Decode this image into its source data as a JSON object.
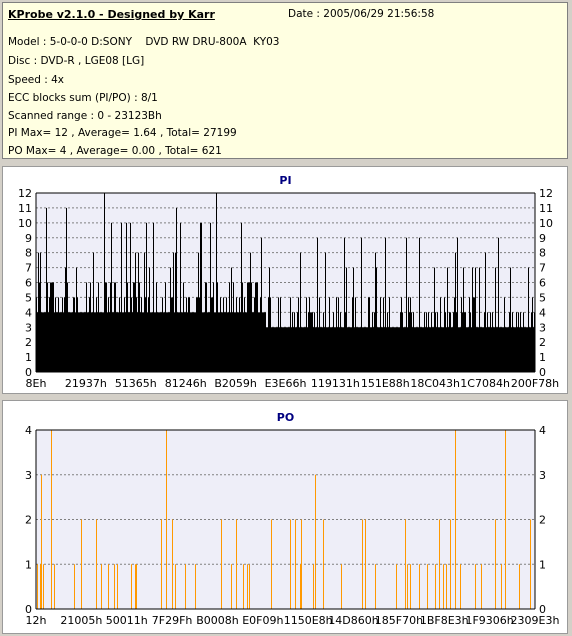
{
  "info": {
    "title": "KProbe v2.1.0 - Designed by Karr",
    "date": "Date : 2005/06/29 21:56:58",
    "lines": [
      "Model : 5-0-0-0 D:SONY    DVD RW DRU-800A  KY03",
      "Disc : DVD-R , LGE08 [LG]",
      "Speed : 4x",
      "ECC blocks sum (PI/PO) : 8/1",
      "Scanned range : 0 - 23123Bh",
      "PI Max= 12 , Average= 1.64 , Total= 27199",
      "PO Max= 4 , Average= 0.00 , Total= 621"
    ]
  },
  "colors": {
    "pi_bar": "#000000",
    "po_bar": "#ff9900",
    "plot_bg": "#eeeef8",
    "title": "#000080",
    "panel_bg": "#ffffe1"
  },
  "chart_data": [
    {
      "type": "bar",
      "title": "PI",
      "ylim": [
        0,
        12
      ],
      "yticks": [
        0,
        1,
        2,
        3,
        4,
        5,
        6,
        7,
        8,
        9,
        10,
        11,
        12
      ],
      "x_tick_labels": [
        "8Eh",
        "21937h",
        "51365h",
        "81246h",
        "B2059h",
        "E3E66h",
        "119131h",
        "151E88h",
        "18C043h",
        "1C7084h",
        "200F78h"
      ],
      "grid": true,
      "baseline_profile": [
        {
          "from": 0.0,
          "to": 0.46,
          "base": 4
        },
        {
          "from": 0.46,
          "to": 1.0,
          "base": 3
        }
      ],
      "max": 12,
      "average": 1.64,
      "spikes": [
        {
          "pos": 0.02,
          "value": 11
        },
        {
          "pos": 0.06,
          "value": 11
        },
        {
          "pos": 0.15,
          "value": 10
        },
        {
          "pos": 0.22,
          "value": 10
        },
        {
          "pos": 0.28,
          "value": 11
        },
        {
          "pos": 0.33,
          "value": 10
        },
        {
          "pos": 0.36,
          "value": 12
        },
        {
          "pos": 0.41,
          "value": 10
        },
        {
          "pos": 0.45,
          "value": 9
        },
        {
          "pos": 0.53,
          "value": 8
        },
        {
          "pos": 0.58,
          "value": 8
        },
        {
          "pos": 0.68,
          "value": 8
        },
        {
          "pos": 0.84,
          "value": 8
        },
        {
          "pos": 0.9,
          "value": 8
        },
        {
          "pos": 0.95,
          "value": 7
        }
      ]
    },
    {
      "type": "bar",
      "title": "PO",
      "ylim": [
        0,
        4
      ],
      "yticks": [
        0,
        1,
        2,
        3,
        4
      ],
      "x_tick_labels": [
        "12h",
        "21005h",
        "50011h",
        "7F29Fh",
        "B0008h",
        "E0F09h",
        "1150E8h",
        "14D860h",
        "185F70h",
        "1BF8E3h",
        "1F9306h",
        "2309E3h"
      ],
      "grid": true,
      "max": 4,
      "average": 0.0,
      "spikes": [
        {
          "pos": 0.01,
          "value": 3
        },
        {
          "pos": 0.03,
          "value": 4
        },
        {
          "pos": 0.09,
          "value": 2
        },
        {
          "pos": 0.12,
          "value": 2
        },
        {
          "pos": 0.13,
          "value": 1
        },
        {
          "pos": 0.2,
          "value": 1
        },
        {
          "pos": 0.25,
          "value": 2
        },
        {
          "pos": 0.26,
          "value": 4
        },
        {
          "pos": 0.37,
          "value": 2
        },
        {
          "pos": 0.4,
          "value": 2
        },
        {
          "pos": 0.47,
          "value": 2
        },
        {
          "pos": 0.52,
          "value": 2
        },
        {
          "pos": 0.56,
          "value": 3
        },
        {
          "pos": 0.66,
          "value": 2
        },
        {
          "pos": 0.74,
          "value": 2
        },
        {
          "pos": 0.83,
          "value": 2
        },
        {
          "pos": 0.84,
          "value": 4
        },
        {
          "pos": 0.92,
          "value": 2
        },
        {
          "pos": 0.94,
          "value": 4
        },
        {
          "pos": 0.99,
          "value": 2
        }
      ]
    }
  ]
}
